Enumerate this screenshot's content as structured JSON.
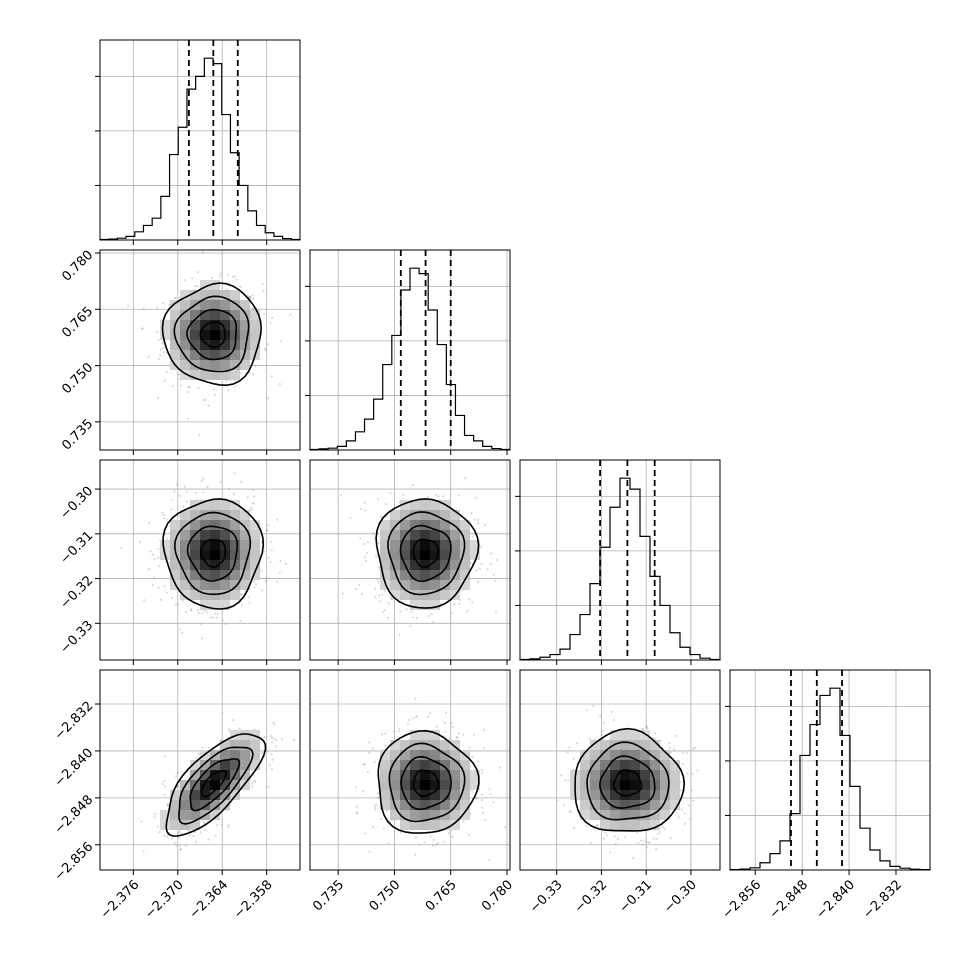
{
  "chart_data": {
    "type": "corner",
    "parameters": [
      {
        "range": [
          -2.3805,
          -2.3535
        ],
        "ticks": [
          -2.376,
          -2.37,
          -2.364,
          -2.358
        ],
        "tick_labels": [
          "−2.376",
          "−2.370",
          "−2.364",
          "−2.358"
        ],
        "quantiles": [
          -2.3685,
          -2.3652,
          -2.3619
        ]
      },
      {
        "range": [
          0.7275,
          0.7808
        ],
        "ticks": [
          0.735,
          0.75,
          0.765,
          0.78
        ],
        "tick_labels": [
          "0.735",
          "0.750",
          "0.765",
          "0.780"
        ],
        "quantiles": [
          0.7517,
          0.7583,
          0.765
        ]
      },
      {
        "range": [
          -0.3382,
          -0.2935
        ],
        "ticks": [
          -0.33,
          -0.32,
          -0.31,
          -0.3
        ],
        "tick_labels": [
          "−0.33",
          "−0.32",
          "−0.31",
          "−0.30"
        ],
        "quantiles": [
          -0.3203,
          -0.3142,
          -0.3081
        ]
      },
      {
        "range": [
          -2.8603,
          -2.8262
        ],
        "ticks": [
          -2.856,
          -2.848,
          -2.84,
          -2.832
        ],
        "tick_labels": [
          "−2.856",
          "−2.848",
          "−2.840",
          "−2.832"
        ],
        "quantiles": [
          -2.8499,
          -2.8455,
          -2.8412
        ]
      }
    ],
    "marginals": [
      [
        0.003,
        0.005,
        0.01,
        0.02,
        0.045,
        0.08,
        0.12,
        0.24,
        0.47,
        0.62,
        0.83,
        0.9,
        1.0,
        0.97,
        0.69,
        0.48,
        0.3,
        0.16,
        0.08,
        0.04,
        0.02,
        0.008,
        0.003
      ],
      [
        0.003,
        0.006,
        0.01,
        0.02,
        0.05,
        0.1,
        0.17,
        0.28,
        0.47,
        0.63,
        0.88,
        1.0,
        0.97,
        0.77,
        0.58,
        0.36,
        0.19,
        0.08,
        0.05,
        0.02,
        0.008,
        0.003
      ],
      [
        0.003,
        0.006,
        0.015,
        0.03,
        0.06,
        0.14,
        0.25,
        0.42,
        0.62,
        0.84,
        1.0,
        0.94,
        0.68,
        0.46,
        0.3,
        0.15,
        0.07,
        0.03,
        0.01,
        0.003
      ],
      [
        0.002,
        0.005,
        0.012,
        0.04,
        0.09,
        0.16,
        0.31,
        0.63,
        0.8,
        0.96,
        1.0,
        0.74,
        0.46,
        0.23,
        0.11,
        0.05,
        0.02,
        0.01,
        0.004,
        0.002
      ]
    ],
    "correlations": [
      [
        1,
        0,
        0,
        0.72
      ],
      [
        0,
        1,
        0,
        0
      ],
      [
        0,
        0,
        1,
        0
      ],
      [
        0.72,
        0,
        0,
        1
      ]
    ],
    "grid": true
  }
}
